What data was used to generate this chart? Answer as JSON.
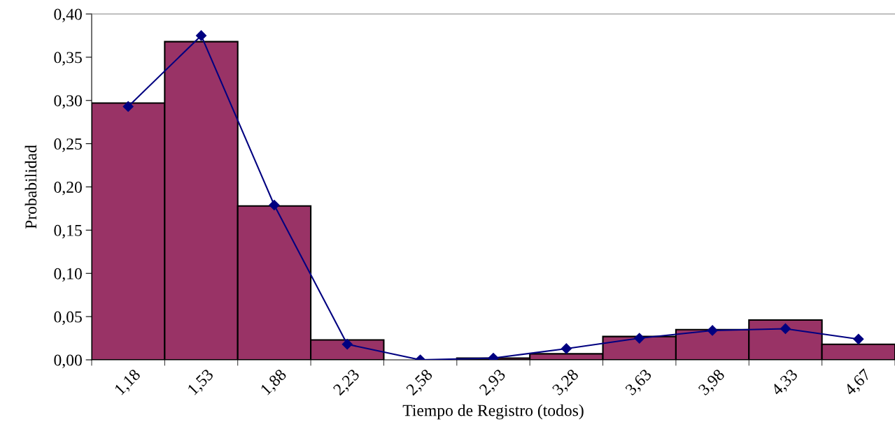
{
  "chart_data": {
    "type": "bar",
    "xlabel": "Tiempo de Registro (todos)",
    "ylabel": "Probabilidad",
    "categories": [
      "1,18",
      "1,53",
      "1,88",
      "2,23",
      "2,58",
      "2,93",
      "3,28",
      "3,63",
      "3,98",
      "4,33",
      "4,67"
    ],
    "series": [
      {
        "color": "#993366",
        "values": [
          0.297,
          0.368,
          0.178,
          0.023,
          0.0,
          0.002,
          0.007,
          0.027,
          0.035,
          0.046,
          0.018
        ]
      },
      {
        "type": "line",
        "color": "#000080",
        "marker": "diamond",
        "values": [
          0.293,
          0.375,
          0.179,
          0.018,
          0.0,
          0.002,
          0.013,
          0.025,
          0.034,
          0.036,
          0.024
        ]
      }
    ],
    "ylim": [
      0,
      0.4
    ],
    "yticks": [
      {
        "value": 0,
        "label": "0,00"
      },
      {
        "value": 0.05,
        "label": "0,05"
      },
      {
        "value": 0.1,
        "label": "0,10"
      },
      {
        "value": 0.15,
        "label": "0,15"
      },
      {
        "value": 0.2,
        "label": "0,20"
      },
      {
        "value": 0.25,
        "label": "0,25"
      },
      {
        "value": 0.3,
        "label": "0,30"
      },
      {
        "value": 0.35,
        "label": "0,35"
      },
      {
        "value": 0.4,
        "label": "0,40"
      }
    ],
    "grid": false,
    "legend": false
  }
}
